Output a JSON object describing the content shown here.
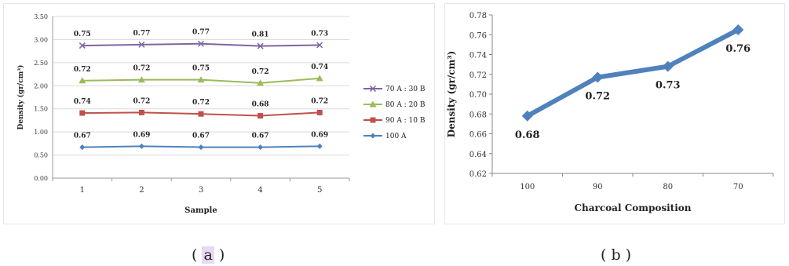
{
  "chart_data": [
    {
      "type": "line",
      "xlabel": "Sample",
      "ylabel": "Density (gr/cm³)",
      "categories": [
        "1",
        "2",
        "3",
        "4",
        "5"
      ],
      "ylim": [
        0,
        3.5
      ],
      "yticks": [
        "0.00",
        "0.50",
        "1.00",
        "1.50",
        "2.00",
        "2.50",
        "3.00",
        "3.50"
      ],
      "grid": true,
      "legend_position": "right",
      "series": [
        {
          "name": "70 A : 30 B",
          "marker": "x",
          "color": "#8064a2",
          "plot_values": [
            2.87,
            2.89,
            2.91,
            2.86,
            2.88
          ],
          "labels": [
            "0.75",
            "0.77",
            "0.77",
            "0.81",
            "0.73"
          ]
        },
        {
          "name": "80 A : 20 B",
          "marker": "triangle",
          "color": "#9bbb59",
          "plot_values": [
            2.11,
            2.13,
            2.13,
            2.06,
            2.16
          ],
          "labels": [
            "0.72",
            "0.72",
            "0.75",
            "0.72",
            "0.74"
          ]
        },
        {
          "name": "90 A : 10 B",
          "marker": "square",
          "color": "#c0504d",
          "plot_values": [
            1.41,
            1.42,
            1.39,
            1.35,
            1.42
          ],
          "labels": [
            "0.74",
            "0.72",
            "0.72",
            "0.68",
            "0.72"
          ]
        },
        {
          "name": "100 A",
          "marker": "diamond",
          "color": "#4f81bd",
          "plot_values": [
            0.67,
            0.69,
            0.67,
            0.67,
            0.69
          ],
          "labels": [
            "0.67",
            "0.69",
            "0.67",
            "0.67",
            "0.69"
          ]
        }
      ],
      "caption": "( a )"
    },
    {
      "type": "line",
      "xlabel": "Charcoal Composition",
      "ylabel": "Density (gr/cm³)",
      "categories": [
        "100",
        "90",
        "80",
        "70"
      ],
      "ylim": [
        0.62,
        0.78
      ],
      "yticks": [
        "0.62",
        "0.64",
        "0.66",
        "0.68",
        "0.70",
        "0.72",
        "0.74",
        "0.76",
        "0.78"
      ],
      "grid": false,
      "series": [
        {
          "name": "",
          "marker": "diamond",
          "color": "#4f81bd",
          "values": [
            0.678,
            0.717,
            0.728,
            0.765
          ],
          "labels": [
            "0.68",
            "0.72",
            "0.73",
            "0.76"
          ]
        }
      ],
      "caption": "( b )"
    }
  ]
}
